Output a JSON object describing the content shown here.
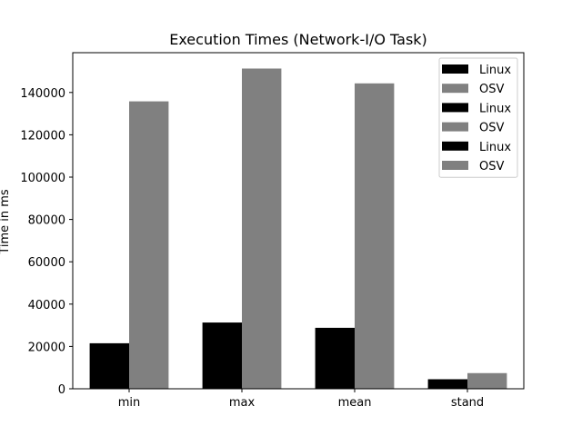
{
  "chart_data": {
    "type": "bar",
    "title": "Execution Times (Network-I/O Task)",
    "xlabel": "",
    "ylabel": "Time in ms",
    "categories": [
      "min",
      "max",
      "mean",
      "stand"
    ],
    "series": [
      {
        "name": "Linux",
        "color": "#000000",
        "values": [
          21500,
          31300,
          28800,
          4500
        ]
      },
      {
        "name": "OSV",
        "color": "#808080",
        "values": [
          135800,
          151300,
          144300,
          7400
        ]
      }
    ],
    "ylim": [
      0,
      158800
    ],
    "yticks": [
      0,
      20000,
      40000,
      60000,
      80000,
      100000,
      120000,
      140000
    ],
    "ytick_labels": [
      "0",
      "20000",
      "40000",
      "60000",
      "80000",
      "100000",
      "120000",
      "140000"
    ],
    "legend": {
      "placement": "top-right",
      "entries": [
        {
          "label": "Linux",
          "color": "#000000"
        },
        {
          "label": "OSV",
          "color": "#808080"
        },
        {
          "label": "Linux",
          "color": "#000000"
        },
        {
          "label": "OSV",
          "color": "#808080"
        },
        {
          "label": "Linux",
          "color": "#000000"
        },
        {
          "label": "OSV",
          "color": "#808080"
        }
      ]
    },
    "grid": false
  }
}
